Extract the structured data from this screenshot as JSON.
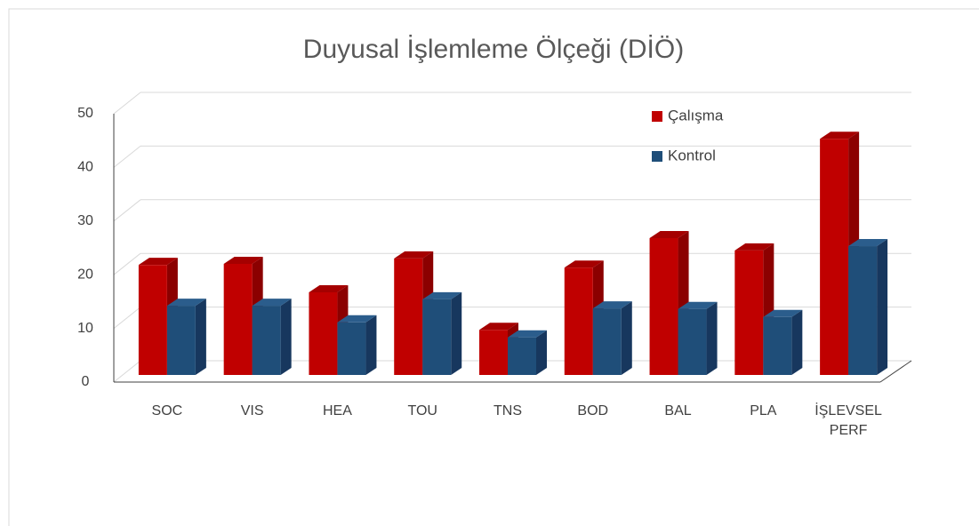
{
  "chart_data": {
    "type": "bar3d",
    "title": "Duyusal İşlemleme Ölçeği (DİÖ)",
    "categories": [
      "SOC",
      "VIS",
      "HEA",
      "TOU",
      "TNS",
      "BOD",
      "BAL",
      "PLA",
      "İŞLEVSEL PERF"
    ],
    "series": [
      {
        "name": "Çalışma",
        "color": "#c00000",
        "values": [
          20.5,
          20.7,
          15.4,
          21.7,
          8.4,
          20.0,
          25.5,
          23.2,
          44.0
        ]
      },
      {
        "name": "Kontrol",
        "color": "#1f4e79",
        "values": [
          12.9,
          12.9,
          9.8,
          14.1,
          7.0,
          12.4,
          12.3,
          10.8,
          24.0
        ]
      }
    ],
    "ylim": [
      0,
      50
    ],
    "yticks": [
      0,
      10,
      20,
      30,
      40,
      50
    ],
    "grid": true,
    "legend": "top-right"
  }
}
